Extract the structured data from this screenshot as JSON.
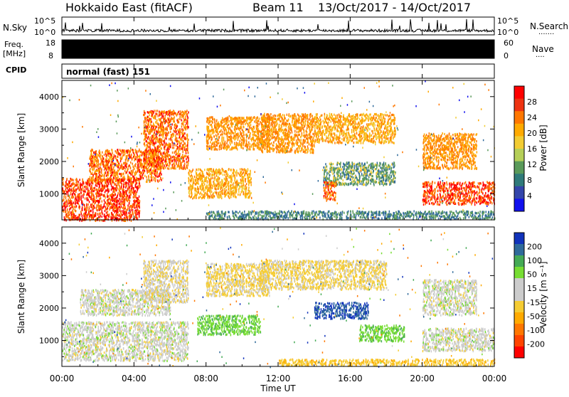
{
  "header": {
    "station": "Hokkaido East (fitACF)",
    "beam": "Beam 11",
    "dates": "13/Oct/2017 - 14/Oct/2017"
  },
  "top_panels": {
    "nsky_label": "N.Sky",
    "nsky_scale_top": "10^5",
    "nsky_scale_bottom": "10^0",
    "nsearch_label": "N.Search",
    "nsearch_dots": ".......",
    "freq_label_line1": "Freq.",
    "freq_label_line2": "[MHz]",
    "freq_ticks": [
      "18",
      "8"
    ],
    "nave_ticks": [
      "60",
      "0"
    ],
    "nave_label": "Nave",
    "nave_dots": "....",
    "cpid_label": "CPID",
    "cpid_text": "normal (fast) 151"
  },
  "colorbars": {
    "power": {
      "label": "Power [dB]",
      "ticks": [
        "28",
        "24",
        "20",
        "16",
        "12",
        "8",
        "4"
      ],
      "colors": [
        "#ff0000",
        "#ee3311",
        "#ff7700",
        "#ffaa00",
        "#f2cc33",
        "#b5cf58",
        "#5a9a5a",
        "#2f7a7a",
        "#3345aa",
        "#1111ee"
      ]
    },
    "velocity": {
      "label": "Velocity [m s⁻¹]",
      "ticks": [
        "200",
        "100",
        "50",
        "15",
        "-15",
        "-50",
        "-100",
        "-200"
      ],
      "colors": [
        "#1133bb",
        "#2f6a9a",
        "#44aa55",
        "#77dd33",
        "#cccccc",
        "#cccccc",
        "#f5cc33",
        "#ffaa00",
        "#ff7700",
        "#ff4400",
        "#ff0000"
      ]
    }
  },
  "chart_data": [
    {
      "type": "heatmap",
      "quantity": "Power",
      "xlabel": "Time UT",
      "ylabel": "Slant Range [km]",
      "x_ticks": [
        "00:00",
        "04:00",
        "08:00",
        "12:00",
        "16:00",
        "20:00",
        "00:00"
      ],
      "x_range_hours": [
        0,
        24
      ],
      "y_ticks": [
        1000,
        2000,
        3000,
        4000
      ],
      "y_range_km": [
        200,
        4500
      ],
      "regions": [
        {
          "t0": 0.0,
          "t1": 4.3,
          "r0": 200,
          "r1": 1500,
          "value": 28
        },
        {
          "t0": 1.5,
          "t1": 5.5,
          "r0": 1400,
          "r1": 2400,
          "value": 26
        },
        {
          "t0": 4.5,
          "t1": 7.0,
          "r0": 1800,
          "r1": 3600,
          "value": 26
        },
        {
          "t0": 7.0,
          "t1": 10.5,
          "r0": 900,
          "r1": 1800,
          "value": 22
        },
        {
          "t0": 8.0,
          "t1": 11.5,
          "r0": 2400,
          "r1": 3400,
          "value": 24
        },
        {
          "t0": 11.0,
          "t1": 14.0,
          "r0": 2300,
          "r1": 3500,
          "value": 24
        },
        {
          "t0": 14.0,
          "t1": 18.5,
          "r0": 2600,
          "r1": 3500,
          "value": 22
        },
        {
          "t0": 14.5,
          "t1": 18.5,
          "r0": 1300,
          "r1": 2000,
          "value": 14
        },
        {
          "t0": 14.5,
          "t1": 15.2,
          "r0": 800,
          "r1": 1400,
          "value": 26
        },
        {
          "t0": 20.0,
          "t1": 24.0,
          "r0": 700,
          "r1": 1400,
          "value": 28
        },
        {
          "t0": 20.0,
          "t1": 23.0,
          "r0": 1800,
          "r1": 2900,
          "value": 24
        },
        {
          "t0": 8.0,
          "t1": 24.0,
          "r0": 250,
          "r1": 500,
          "value": 12
        }
      ]
    },
    {
      "type": "heatmap",
      "quantity": "Velocity",
      "xlabel": "Time UT",
      "ylabel": "Slant Range [km]",
      "x_ticks": [
        "00:00",
        "04:00",
        "08:00",
        "12:00",
        "16:00",
        "20:00",
        "00:00"
      ],
      "x_range_hours": [
        0,
        24
      ],
      "y_ticks": [
        1000,
        2000,
        3000,
        4000
      ],
      "y_range_km": [
        200,
        4500
      ],
      "regions": [
        {
          "t0": 0.0,
          "t1": 7.0,
          "r0": 400,
          "r1": 1600,
          "value": 0
        },
        {
          "t0": 1.0,
          "t1": 6.0,
          "r0": 1800,
          "r1": 2600,
          "value": 0
        },
        {
          "t0": 4.5,
          "t1": 7.0,
          "r0": 2200,
          "r1": 3500,
          "value": -10
        },
        {
          "t0": 7.5,
          "t1": 11.0,
          "r0": 1200,
          "r1": 1800,
          "value": 40
        },
        {
          "t0": 8.0,
          "t1": 11.5,
          "r0": 2400,
          "r1": 3400,
          "value": -20
        },
        {
          "t0": 11.0,
          "t1": 18.0,
          "r0": 2600,
          "r1": 3500,
          "value": -20
        },
        {
          "t0": 14.0,
          "t1": 17.0,
          "r0": 1700,
          "r1": 2200,
          "value": 150
        },
        {
          "t0": 16.5,
          "t1": 19.0,
          "r0": 1000,
          "r1": 1500,
          "value": 40
        },
        {
          "t0": 20.0,
          "t1": 24.0,
          "r0": 700,
          "r1": 1400,
          "value": 0
        },
        {
          "t0": 20.0,
          "t1": 23.0,
          "r0": 1800,
          "r1": 2900,
          "value": 0
        },
        {
          "t0": 12.0,
          "t1": 24.0,
          "r0": 250,
          "r1": 450,
          "value": -40
        }
      ]
    }
  ]
}
